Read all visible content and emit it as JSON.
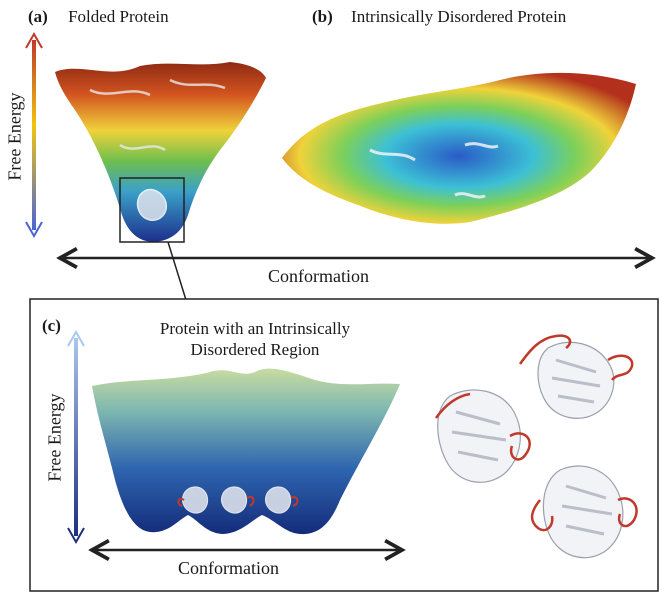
{
  "panel_a": {
    "letter": "(a)",
    "title": "Folded Protein"
  },
  "panel_b": {
    "letter": "(b)",
    "title": "Intrinsically Disordered Protein"
  },
  "panel_c": {
    "letter": "(c)",
    "title_line1": "Protein with an Intrinsically",
    "title_line2": "Disordered Region"
  },
  "axes": {
    "y_label_top": "Free Energy",
    "x_label_top": "Conformation",
    "y_label_inset": "Free Energy",
    "x_label_inset": "Conformation"
  },
  "colors": {
    "high_energy": "#b22a1a",
    "mid_energy": "#e8d43a",
    "low_energy": "#1f4aa8",
    "inset_top": "#a8c8a0",
    "inset_bottom": "#1e3a8a",
    "disordered_region": "#c0392b",
    "axis_arrow": "#222222"
  }
}
